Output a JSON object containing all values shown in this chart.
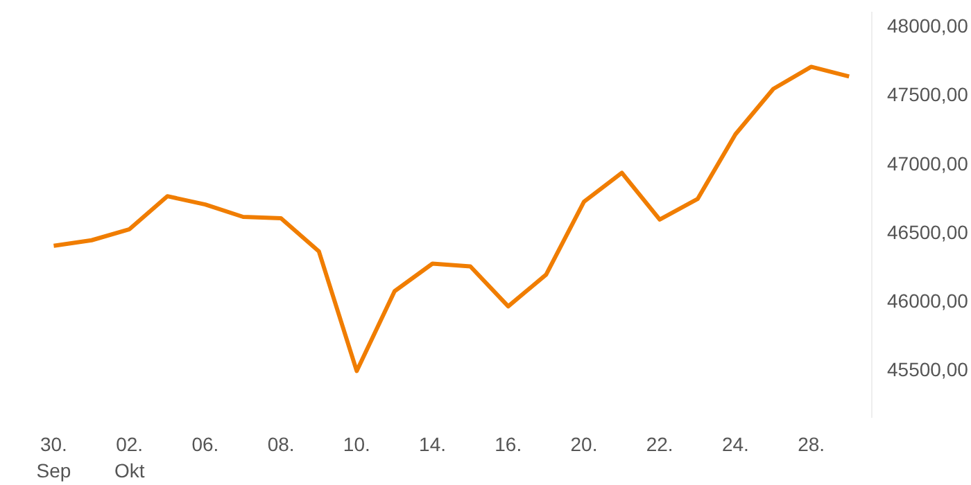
{
  "chart_data": {
    "type": "line",
    "categories": [
      "30.\nSep",
      null,
      "02.\nOkt",
      null,
      "06.",
      null,
      "08.",
      null,
      "10.",
      null,
      "14.",
      null,
      "16.",
      null,
      "20.",
      null,
      "22.",
      null,
      "24.",
      null,
      "28.",
      null
    ],
    "series": [
      {
        "color": "#f07d00",
        "values": [
          46400,
          46440,
          46520,
          46760,
          46700,
          46610,
          46600,
          46360,
          45490,
          46070,
          46270,
          46250,
          45960,
          46190,
          46720,
          46930,
          46590,
          46740,
          47210,
          47540,
          47700,
          47630
        ]
      }
    ],
    "ylim": [
      45150,
      48100
    ],
    "yticks": [
      {
        "value": 45500,
        "label": "45500,00"
      },
      {
        "value": 46000,
        "label": "46000,00"
      },
      {
        "value": 46500,
        "label": "46500,00"
      },
      {
        "value": 47000,
        "label": "47000,00"
      },
      {
        "value": 47500,
        "label": "47500,00"
      },
      {
        "value": 48000,
        "label": "48000,00"
      }
    ],
    "grid": false,
    "line_style": "solid",
    "marker": "none"
  }
}
